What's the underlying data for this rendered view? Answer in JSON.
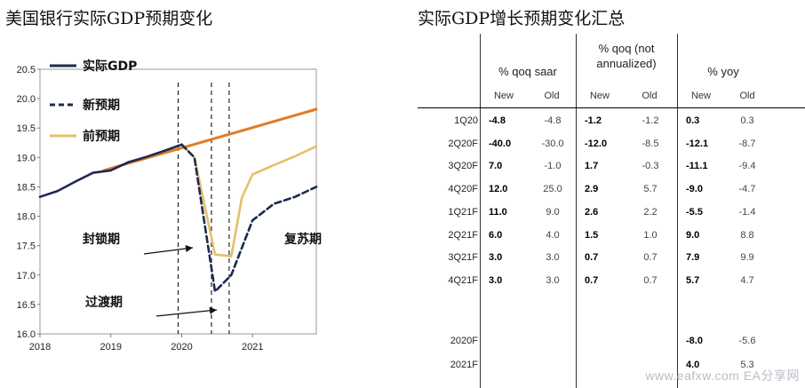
{
  "left_title": "美国银行实际GDP预期变化",
  "right_title": "实际GDP增长预期变化汇总",
  "chart_data": {
    "type": "line",
    "title": "美国银行实际GDP预期变化",
    "ylim": [
      16.0,
      20.5
    ],
    "yticks": [
      "20.5",
      "20.0",
      "19.5",
      "19.0",
      "18.5",
      "18.0",
      "17.5",
      "17.0",
      "16.5",
      "16.0"
    ],
    "xlim": [
      2018.0,
      2021.9
    ],
    "xticks": [
      "2018",
      "2019",
      "2020",
      "2021"
    ],
    "series": [
      {
        "name": "实际GDP",
        "color": "#1c2a4f",
        "dash": "solid",
        "x": [
          2018.0,
          2018.25,
          2018.5,
          2018.75,
          2019.0,
          2019.25,
          2019.5,
          2019.75,
          2020.0
        ],
        "y": [
          18.33,
          18.43,
          18.59,
          18.74,
          18.78,
          18.92,
          19.01,
          19.11,
          19.22
        ]
      },
      {
        "name": "新预期",
        "color": "#1c2a4f",
        "dash": "dashed",
        "x": [
          2020.0,
          2020.18,
          2020.47,
          2020.7,
          2021.0,
          2021.3,
          2021.6,
          2021.9
        ],
        "y": [
          19.22,
          19.0,
          16.72,
          17.0,
          17.93,
          18.21,
          18.33,
          18.5
        ]
      },
      {
        "name": "前预期",
        "color": "#e3c06a",
        "dash": "solid",
        "x": [
          2020.0,
          2020.18,
          2020.47,
          2020.7,
          2020.85,
          2021.0,
          2021.3,
          2021.6,
          2021.9
        ],
        "y": [
          19.22,
          19.0,
          17.35,
          17.32,
          18.32,
          18.71,
          18.87,
          19.02,
          19.19
        ]
      },
      {
        "name": "",
        "color": "#e07c24",
        "dash": "solid",
        "x": [
          2018.9,
          2021.9
        ],
        "y": [
          18.78,
          19.82
        ]
      }
    ],
    "vlines": [
      2019.95,
      2020.42,
      2020.67
    ],
    "annotations": [
      "封锁期",
      "过渡期",
      "复苏期"
    ]
  },
  "table": {
    "groups": [
      "% qoq saar",
      "% qoq (not annualized)",
      "% yoy"
    ],
    "sub_new": "New",
    "sub_old": "Old",
    "rows": [
      {
        "label": "1Q20",
        "v": [
          "-4.8",
          "-4.8",
          "-1.2",
          "-1.2",
          "0.3",
          "0.3"
        ]
      },
      {
        "label": "2Q20F",
        "v": [
          "-40.0",
          "-30.0",
          "-12.0",
          "-8.5",
          "-12.1",
          "-8.7"
        ]
      },
      {
        "label": "3Q20F",
        "v": [
          "7.0",
          "-1.0",
          "1.7",
          "-0.3",
          "-11.1",
          "-9.4"
        ]
      },
      {
        "label": "4Q20F",
        "v": [
          "12.0",
          "25.0",
          "2.9",
          "5.7",
          "-9.0",
          "-4.7"
        ]
      },
      {
        "label": "1Q21F",
        "v": [
          "11.0",
          "9.0",
          "2.6",
          "2.2",
          "-5.5",
          "-1.4"
        ]
      },
      {
        "label": "2Q21F",
        "v": [
          "6.0",
          "4.0",
          "1.5",
          "1.0",
          "9.0",
          "8.8"
        ]
      },
      {
        "label": "3Q21F",
        "v": [
          "3.0",
          "3.0",
          "0.7",
          "0.7",
          "7.9",
          "9.9"
        ]
      },
      {
        "label": "4Q21F",
        "v": [
          "3.0",
          "3.0",
          "0.7",
          "0.7",
          "5.7",
          "4.7"
        ]
      }
    ],
    "annual_rows": [
      {
        "label": "2020F",
        "v": [
          "",
          "",
          "",
          "",
          "-8.0",
          "-5.6"
        ]
      },
      {
        "label": "2021F",
        "v": [
          "",
          "",
          "",
          "",
          "4.0",
          "5.3"
        ]
      }
    ]
  },
  "watermark": "www.eafxw.com  EA分享网"
}
